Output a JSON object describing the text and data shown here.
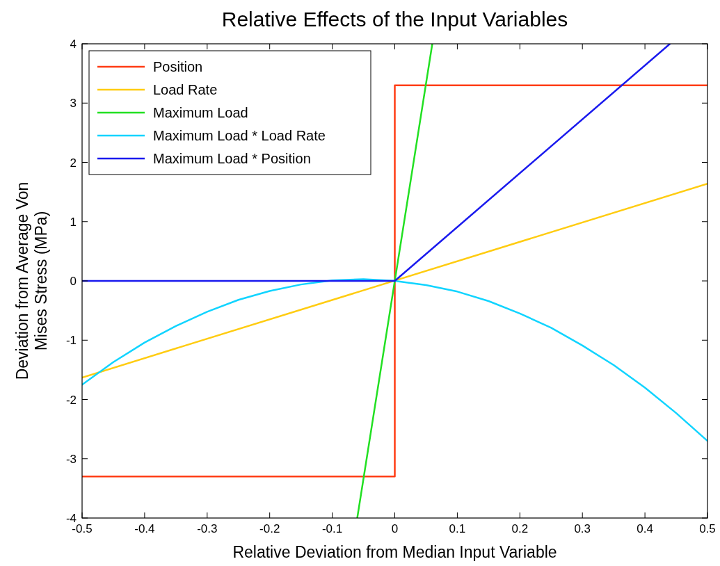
{
  "chart_data": {
    "type": "line",
    "title": "Relative Effects of the Input Variables",
    "xlabel": "Relative Deviation from Median Input Variable",
    "ylabel": "Deviation from Average Von Mises Stress (MPa)",
    "xlim": [
      -0.5,
      0.5
    ],
    "ylim": [
      -4,
      4
    ],
    "xticks": [
      -0.5,
      -0.4,
      -0.3,
      -0.2,
      -0.1,
      0,
      0.1,
      0.2,
      0.3,
      0.4,
      0.5
    ],
    "yticks": [
      -4,
      -3,
      -2,
      -1,
      0,
      1,
      2,
      3,
      4
    ],
    "grid": false,
    "legend": "top left",
    "line_style": "solid",
    "marker": "none",
    "series": [
      {
        "name": "Position",
        "color": "#ff3c14",
        "x": [
          -0.5,
          0,
          0,
          0.5
        ],
        "values": [
          -3.3,
          -3.3,
          3.3,
          3.3
        ]
      },
      {
        "name": "Load Rate",
        "color": "#ffcc11",
        "x": [
          -0.5,
          0.5
        ],
        "values": [
          -1.63,
          1.64
        ]
      },
      {
        "name": "Maximum Load",
        "color": "#22e022",
        "x": [
          -0.06,
          0.06
        ],
        "values": [
          -4,
          4
        ]
      },
      {
        "name": "Maximum Load * Load Rate",
        "color": "#11d4ff",
        "x": [
          -0.5,
          -0.45,
          -0.4,
          -0.35,
          -0.3,
          -0.25,
          -0.2,
          -0.15,
          -0.1,
          -0.05,
          0,
          0.05,
          0.1,
          0.15,
          0.2,
          0.25,
          0.3,
          0.35,
          0.4,
          0.45,
          0.5
        ],
        "values": [
          -1.75,
          -1.37,
          -1.04,
          -0.76,
          -0.52,
          -0.32,
          -0.17,
          -0.06,
          0.01,
          0.03,
          0,
          -0.07,
          -0.18,
          -0.34,
          -0.55,
          -0.79,
          -1.09,
          -1.42,
          -1.8,
          -2.23,
          -2.7
        ]
      },
      {
        "name": "Maximum Load * Position",
        "color": "#1a1aee",
        "x": [
          -0.5,
          0,
          0.44
        ],
        "values": [
          0,
          0,
          4
        ]
      }
    ]
  }
}
